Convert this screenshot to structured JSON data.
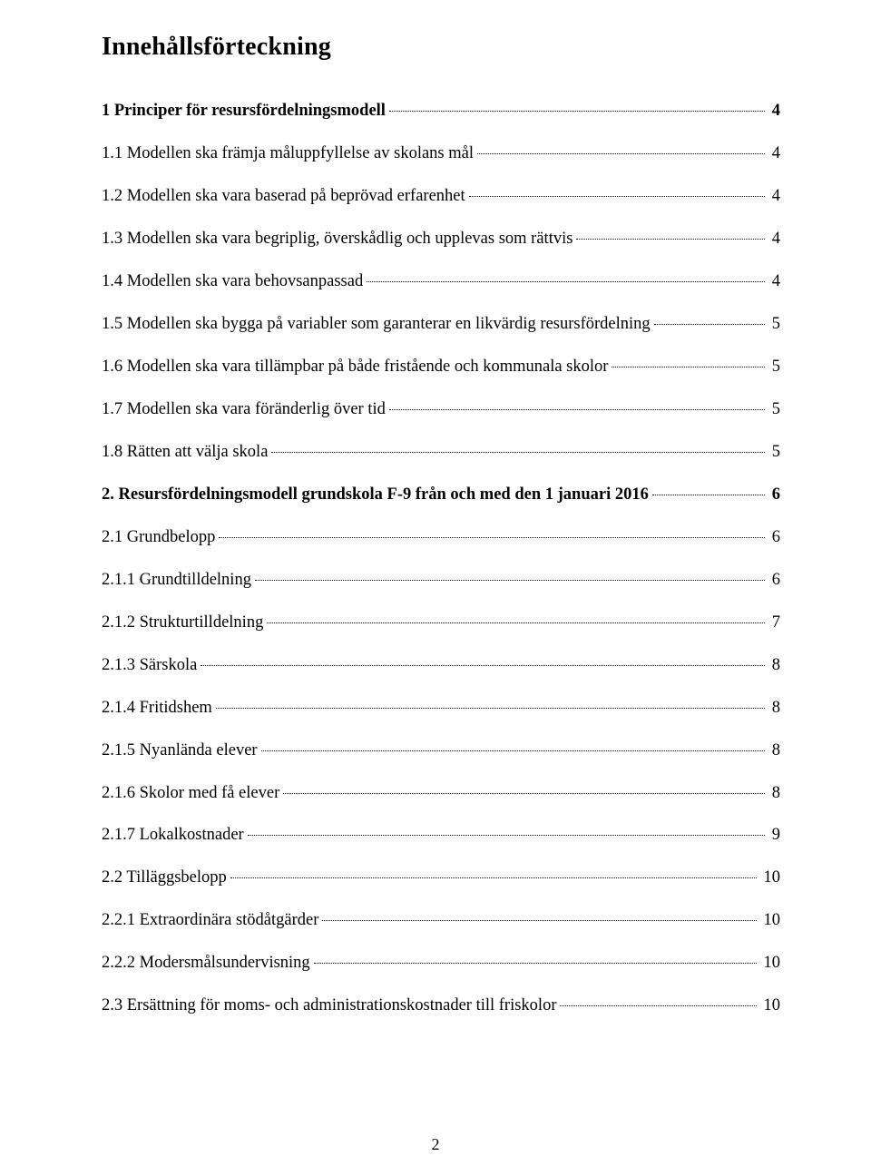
{
  "title": "Innehållsförteckning",
  "page_number": "2",
  "entries": [
    {
      "label": "1 Principer för resursfördelningsmodell",
      "page": "4",
      "bold": true
    },
    {
      "label": "1.1 Modellen ska främja måluppfyllelse av skolans mål",
      "page": "4",
      "bold": false
    },
    {
      "label": "1.2 Modellen ska vara baserad på beprövad erfarenhet",
      "page": "4",
      "bold": false
    },
    {
      "label": "1.3 Modellen ska vara begriplig, överskådlig och upplevas som rättvis",
      "page": "4",
      "bold": false
    },
    {
      "label": "1.4 Modellen ska vara behovsanpassad",
      "page": "4",
      "bold": false
    },
    {
      "label": "1.5 Modellen ska bygga på variabler som garanterar en likvärdig resursfördelning",
      "page": "5",
      "bold": false
    },
    {
      "label": "1.6 Modellen ska vara tillämpbar på både fristående och kommunala skolor",
      "page": "5",
      "bold": false
    },
    {
      "label": "1.7 Modellen ska vara föränderlig över tid",
      "page": "5",
      "bold": false
    },
    {
      "label": "1.8 Rätten att välja skola",
      "page": "5",
      "bold": false
    },
    {
      "label": "2. Resursfördelningsmodell grundskola F-9 från och med   den 1 januari 2016",
      "page": "6",
      "bold": true
    },
    {
      "label": "2.1 Grundbelopp",
      "page": "6",
      "bold": false
    },
    {
      "label": "2.1.1 Grundtilldelning",
      "page": "6",
      "bold": false
    },
    {
      "label": "2.1.2 Strukturtilldelning",
      "page": "7",
      "bold": false
    },
    {
      "label": "2.1.3 Särskola",
      "page": "8",
      "bold": false
    },
    {
      "label": "2.1.4 Fritidshem",
      "page": "8",
      "bold": false
    },
    {
      "label": "2.1.5 Nyanlända elever",
      "page": "8",
      "bold": false
    },
    {
      "label": "2.1.6 Skolor med få elever",
      "page": "8",
      "bold": false
    },
    {
      "label": "2.1.7 Lokalkostnader",
      "page": "9",
      "bold": false
    },
    {
      "label": "2.2 Tilläggsbelopp",
      "page": "10",
      "bold": false
    },
    {
      "label": "2.2.1 Extraordinära stödåtgärder",
      "page": "10",
      "bold": false
    },
    {
      "label": "2.2.2 Modersmålsundervisning",
      "page": "10",
      "bold": false
    },
    {
      "label": "2.3 Ersättning för moms- och administrationskostnader till friskolor",
      "page": "10",
      "bold": false
    }
  ]
}
